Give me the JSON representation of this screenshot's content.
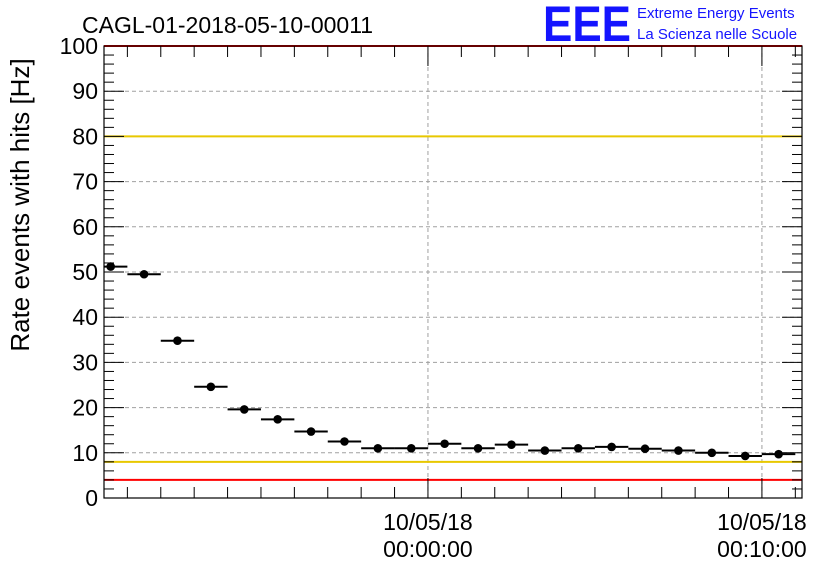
{
  "colors": {
    "red_threshold": "#ff0000",
    "yellow_threshold": "#e8c800",
    "logo_blue": "#1414ff",
    "marker": "#000000",
    "grid": "#a0a0a0"
  },
  "logo": {
    "mark": "EEE",
    "line1": "Extreme Energy Events",
    "line2": "La Scienza nelle Scuole"
  },
  "chart_data": {
    "type": "scatter",
    "title": "CAGL-01-2018-05-10-00011",
    "ylabel": "Rate events with hits [Hz]",
    "xlabel": "",
    "xlim_minutes": [
      -9.7,
      1.2
    ],
    "ylim": [
      0,
      100
    ],
    "y_major_ticks": [
      0,
      10,
      20,
      30,
      40,
      50,
      60,
      70,
      80,
      90,
      100
    ],
    "grid": true,
    "x_tick_labels": [
      {
        "at_minutes": 0,
        "date": "10/05/18",
        "time": "00:00:00"
      },
      {
        "at_minutes": 10,
        "date": "10/05/18",
        "time": "00:10:00"
      }
    ],
    "bin_halfwidth_minutes": 0.5,
    "points": [
      {
        "x": -9.5,
        "y": 51.2
      },
      {
        "x": -8.5,
        "y": 49.5
      },
      {
        "x": -7.5,
        "y": 34.8
      },
      {
        "x": -6.5,
        "y": 24.6
      },
      {
        "x": -5.5,
        "y": 19.6
      },
      {
        "x": -4.5,
        "y": 17.4
      },
      {
        "x": -3.5,
        "y": 14.7
      },
      {
        "x": -2.5,
        "y": 12.5
      },
      {
        "x": -1.5,
        "y": 11.0
      },
      {
        "x": -0.5,
        "y": 11.0
      },
      {
        "x": 0.5,
        "y": 12.0
      },
      {
        "x": 1.5,
        "y": 11.0
      },
      {
        "x": 2.5,
        "y": 11.8
      },
      {
        "x": 3.5,
        "y": 10.5
      },
      {
        "x": 4.5,
        "y": 11.0
      },
      {
        "x": 5.5,
        "y": 11.3
      },
      {
        "x": 6.5,
        "y": 10.9
      },
      {
        "x": 7.5,
        "y": 10.5
      },
      {
        "x": 8.5,
        "y": 10.0
      },
      {
        "x": 9.5,
        "y": 9.3
      },
      {
        "x": 10.5,
        "y": 9.7
      }
    ],
    "thresholds": [
      {
        "y": 100,
        "color": "red"
      },
      {
        "y": 80,
        "color": "yellow"
      },
      {
        "y": 8,
        "color": "yellow"
      },
      {
        "y": 4,
        "color": "red"
      }
    ]
  }
}
